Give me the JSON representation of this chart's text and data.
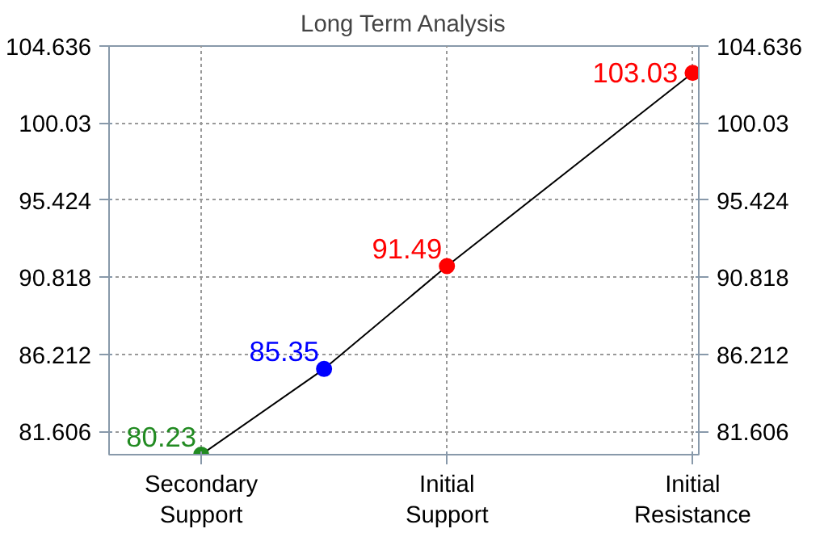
{
  "chart_data": {
    "type": "line",
    "title": "Long Term Analysis",
    "categories": [
      "Secondary\nSupport",
      null,
      "Initial\nSupport",
      null,
      "Initial\nResistance"
    ],
    "series": [
      {
        "color": "#000000",
        "colors": [
          "#228b22",
          "#0000ff",
          "#ff0000",
          null,
          "#ff0000"
        ],
        "values": [
          80.23,
          85.35,
          91.49,
          null,
          103.03
        ]
      }
    ],
    "ylim": [
      80.23,
      104.636
    ],
    "yticks": [
      81.606,
      86.212,
      90.818,
      95.424,
      100.03,
      104.636
    ],
    "y2lim": [
      80.23,
      104.636
    ],
    "y2ticks": [
      81.606,
      86.212,
      90.818,
      95.424,
      100.03,
      104.636
    ],
    "marker": "circle",
    "grid": true,
    "data_labels": true
  }
}
